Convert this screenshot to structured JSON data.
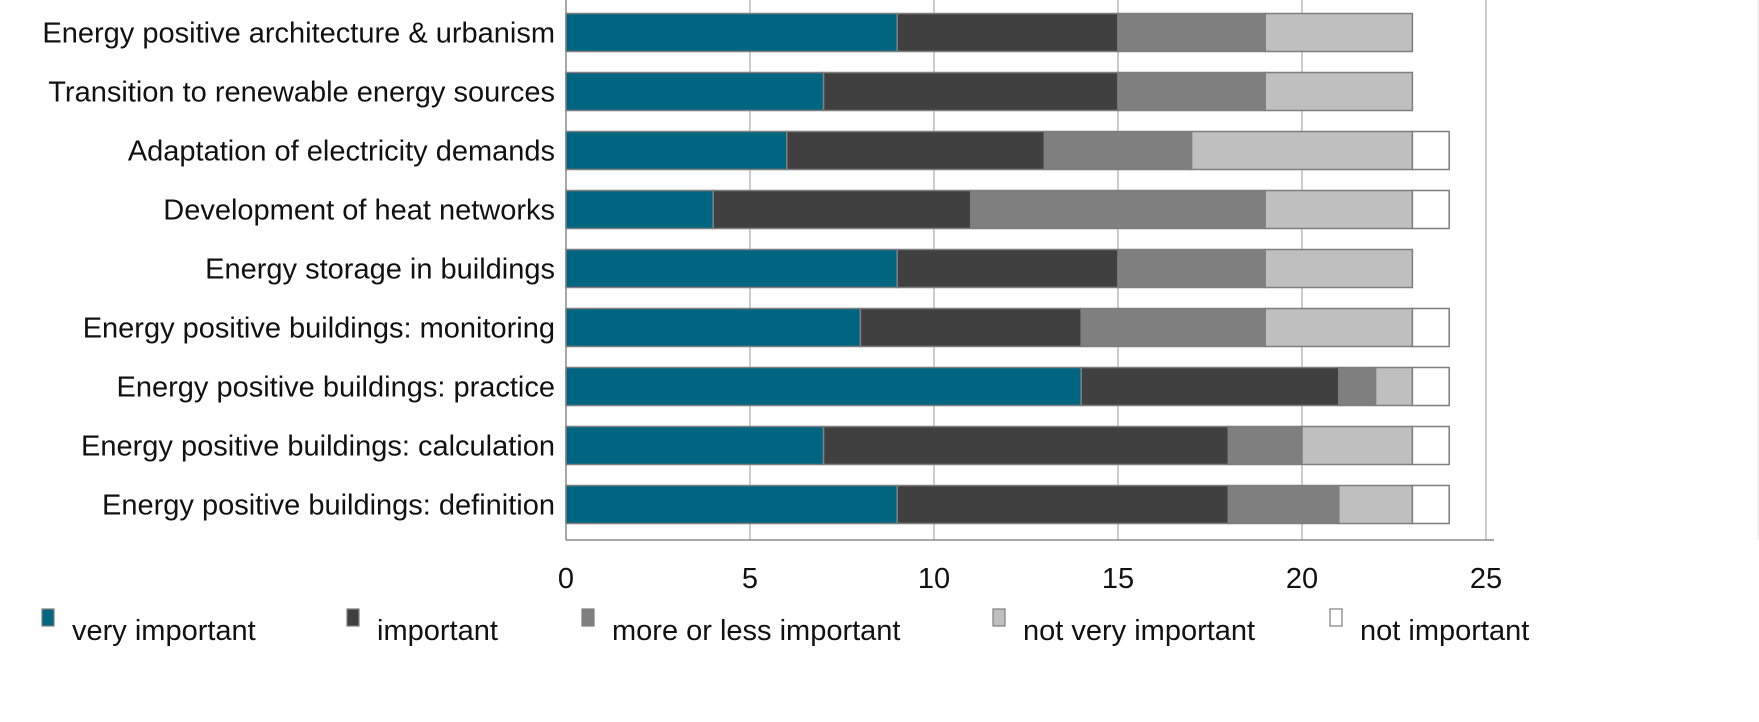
{
  "chart_data": {
    "type": "bar",
    "orientation": "horizontal",
    "stacked": true,
    "categories": [
      "Energy positive architecture & urbanism",
      "Transition to renewable energy sources",
      "Adaptation of electricity demands",
      "Development of heat networks",
      "Energy storage in buildings",
      "Energy positive buildings: monitoring",
      "Energy positive buildings: practice",
      "Energy positive buildings: calculation",
      "Energy positive buildings: definition"
    ],
    "series": [
      {
        "name": "very important",
        "color": "#006580",
        "values": [
          9,
          7,
          6,
          4,
          9,
          8,
          14,
          7,
          9
        ]
      },
      {
        "name": "important",
        "color": "#404040",
        "values": [
          6,
          8,
          7,
          7,
          6,
          6,
          7,
          11,
          9
        ]
      },
      {
        "name": "more or less important",
        "color": "#7f7f7f",
        "values": [
          4,
          4,
          4,
          8,
          4,
          5,
          1,
          2,
          3
        ]
      },
      {
        "name": "not very important",
        "color": "#bfbfbf",
        "values": [
          4,
          4,
          6,
          4,
          4,
          4,
          1,
          3,
          2
        ]
      },
      {
        "name": "not important",
        "color": "#ffffff",
        "values": [
          0,
          0,
          1,
          1,
          0,
          1,
          1,
          1,
          1
        ]
      }
    ],
    "x_ticks": [
      "0",
      "5",
      "10",
      "15",
      "20",
      "25"
    ],
    "xlim": [
      0,
      25
    ],
    "xlabel": "",
    "ylabel": "",
    "title": "",
    "grid": true,
    "legend_position": "bottom"
  }
}
